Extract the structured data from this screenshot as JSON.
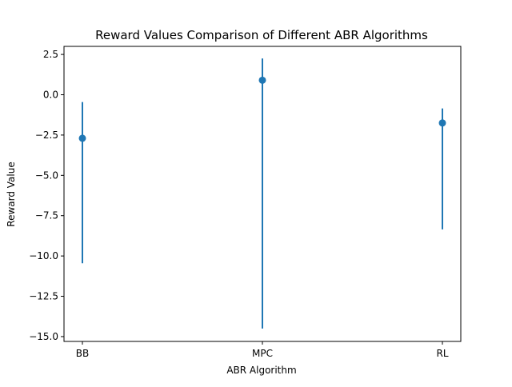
{
  "chart_data": {
    "type": "scatter",
    "title": "Reward Values Comparison of Different ABR Algorithms",
    "xlabel": "ABR Algorithm",
    "ylabel": "Reward Value",
    "categories": [
      "BB",
      "MPC",
      "RL"
    ],
    "series": [
      {
        "values": [
          -2.7,
          0.9,
          -1.75
        ],
        "error_low": [
          -10.45,
          -14.5,
          -8.35
        ],
        "error_high": [
          -0.45,
          2.25,
          -0.85
        ],
        "color": "#1f77b4",
        "marker": "circle"
      }
    ],
    "ylim": [
      -15.3,
      3.0
    ],
    "yticks": [
      2.5,
      0.0,
      -2.5,
      -5.0,
      -7.5,
      -10.0,
      -12.5,
      -15.0
    ],
    "ytick_labels": [
      "2.5",
      "0.0",
      "−2.5",
      "−5.0",
      "−7.5",
      "−10.0",
      "−12.5",
      "−15.0"
    ],
    "grid": false,
    "legend": "none"
  }
}
